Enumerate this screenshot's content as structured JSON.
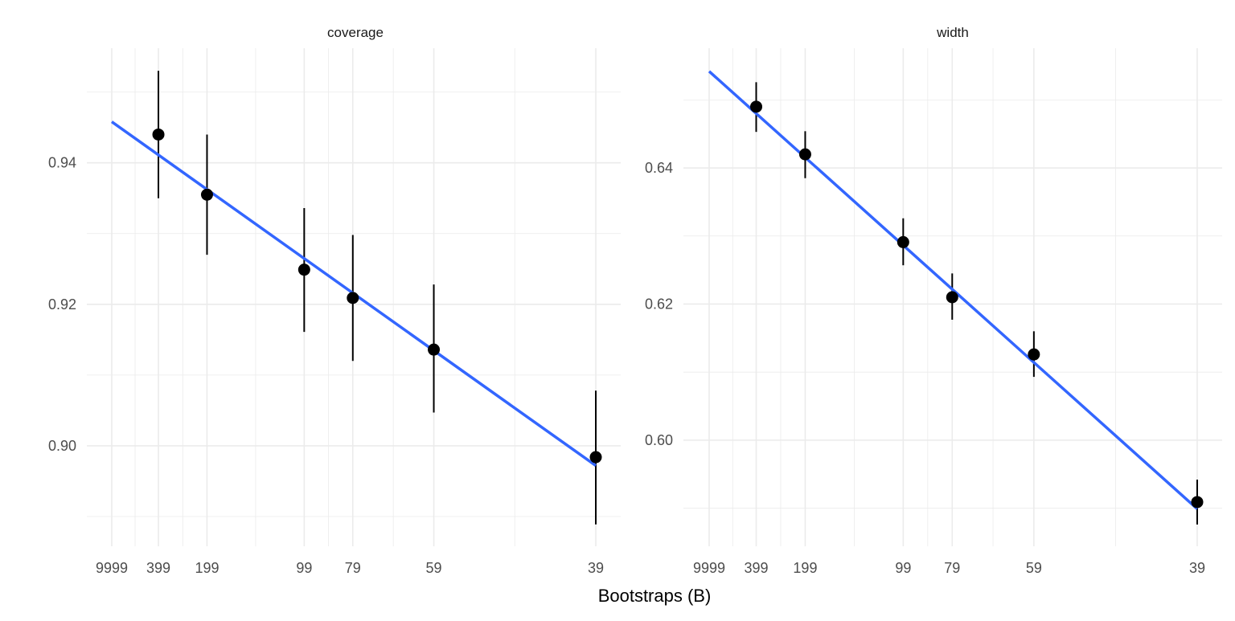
{
  "chart_data": [
    {
      "type": "scatter",
      "panel_title": "coverage",
      "x_scale": "reciprocal (1/(B+1))",
      "x_ticks": [
        9999,
        399,
        199,
        99,
        79,
        59,
        39
      ],
      "x_tick_labels": [
        "9999",
        "399",
        "199",
        "99",
        "79",
        "59",
        "39"
      ],
      "y_ticks": [
        0.9,
        0.92,
        0.94
      ],
      "y_tick_labels": [
        "0.90",
        "0.92",
        "0.94"
      ],
      "ylim": [
        0.8858,
        0.9562
      ],
      "grid": true,
      "points": [
        {
          "B": 399,
          "y": 0.944,
          "ymin": 0.935,
          "ymax": 0.953
        },
        {
          "B": 199,
          "y": 0.9355,
          "ymin": 0.927,
          "ymax": 0.944
        },
        {
          "B": 99,
          "y": 0.9249,
          "ymin": 0.9161,
          "ymax": 0.9336
        },
        {
          "B": 79,
          "y": 0.9209,
          "ymin": 0.912,
          "ymax": 0.9298
        },
        {
          "B": 59,
          "y": 0.9136,
          "ymin": 0.9047,
          "ymax": 0.9228
        },
        {
          "B": 39,
          "y": 0.8984,
          "ymin": 0.8889,
          "ymax": 0.9078
        }
      ],
      "fit_line": {
        "from": {
          "B": 9999,
          "y": 0.9458
        },
        "to": {
          "B": 39,
          "y": 0.8972
        },
        "color": "#3366FF"
      }
    },
    {
      "type": "scatter",
      "panel_title": "width",
      "x_scale": "reciprocal (1/(B+1))",
      "x_ticks": [
        9999,
        399,
        199,
        99,
        79,
        59,
        39
      ],
      "x_tick_labels": [
        "9999",
        "399",
        "199",
        "99",
        "79",
        "59",
        "39"
      ],
      "y_ticks": [
        0.6,
        0.62,
        0.64
      ],
      "y_tick_labels": [
        "0.60",
        "0.62",
        "0.64"
      ],
      "ylim": [
        0.5844,
        0.6576
      ],
      "grid": true,
      "points": [
        {
          "B": 399,
          "y": 0.649,
          "ymin": 0.6453,
          "ymax": 0.6526
        },
        {
          "B": 199,
          "y": 0.642,
          "ymin": 0.6385,
          "ymax": 0.6454
        },
        {
          "B": 99,
          "y": 0.6291,
          "ymin": 0.6257,
          "ymax": 0.6326
        },
        {
          "B": 79,
          "y": 0.621,
          "ymin": 0.6177,
          "ymax": 0.6245
        },
        {
          "B": 59,
          "y": 0.6126,
          "ymin": 0.6093,
          "ymax": 0.616
        },
        {
          "B": 39,
          "y": 0.5909,
          "ymin": 0.5876,
          "ymax": 0.5942
        }
      ],
      "fit_line": {
        "from": {
          "B": 9999,
          "y": 0.6542
        },
        "to": {
          "B": 39,
          "y": 0.5899
        },
        "color": "#3366FF"
      }
    }
  ],
  "xlabel": "Bootstraps (B)",
  "colors": {
    "grid": "#EBEBEB",
    "points": "#000000",
    "text": "#4D4D4D",
    "fit": "#3366FF"
  }
}
